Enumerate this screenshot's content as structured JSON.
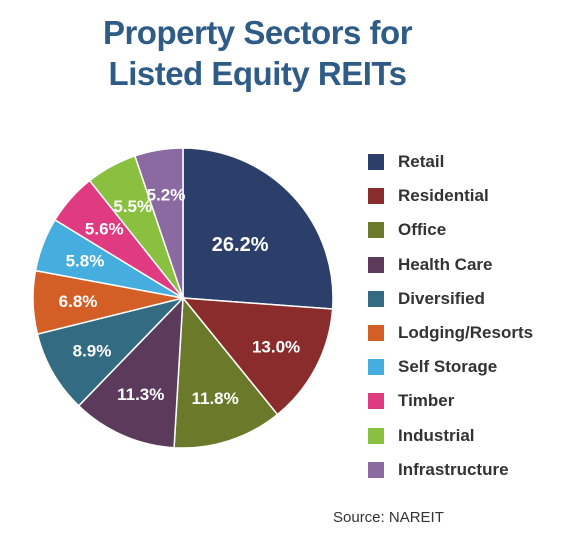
{
  "title_lines": [
    "Property Sectors for",
    "Listed Equity REITs"
  ],
  "source": "Source: NAREIT",
  "chart_data": {
    "type": "pie",
    "title": "Property Sectors for Listed Equity REITs",
    "slices": [
      {
        "label": "Retail",
        "value": 26.2,
        "display": "26.2%",
        "color": "#2c3f6b"
      },
      {
        "label": "Residential",
        "value": 13.0,
        "display": "13.0%",
        "color": "#8a2c2c"
      },
      {
        "label": "Office",
        "value": 11.8,
        "display": "11.8%",
        "color": "#6b7a2a"
      },
      {
        "label": "Health Care",
        "value": 11.3,
        "display": "11.3%",
        "color": "#5c3a5c"
      },
      {
        "label": "Diversified",
        "value": 8.9,
        "display": "8.9%",
        "color": "#336b82"
      },
      {
        "label": "Lodging/Resorts",
        "value": 6.8,
        "display": "6.8%",
        "color": "#d45f26"
      },
      {
        "label": "Self Storage",
        "value": 5.8,
        "display": "5.8%",
        "color": "#46aedf"
      },
      {
        "label": "Timber",
        "value": 5.6,
        "display": "5.6%",
        "color": "#e03a80"
      },
      {
        "label": "Industrial",
        "value": 5.5,
        "display": "5.5%",
        "color": "#8ac03f"
      },
      {
        "label": "Infrastructure",
        "value": 5.2,
        "display": "5.2%",
        "color": "#8a6aa0"
      }
    ],
    "legend_position": "right",
    "start": "12 o'clock, clockwise"
  }
}
